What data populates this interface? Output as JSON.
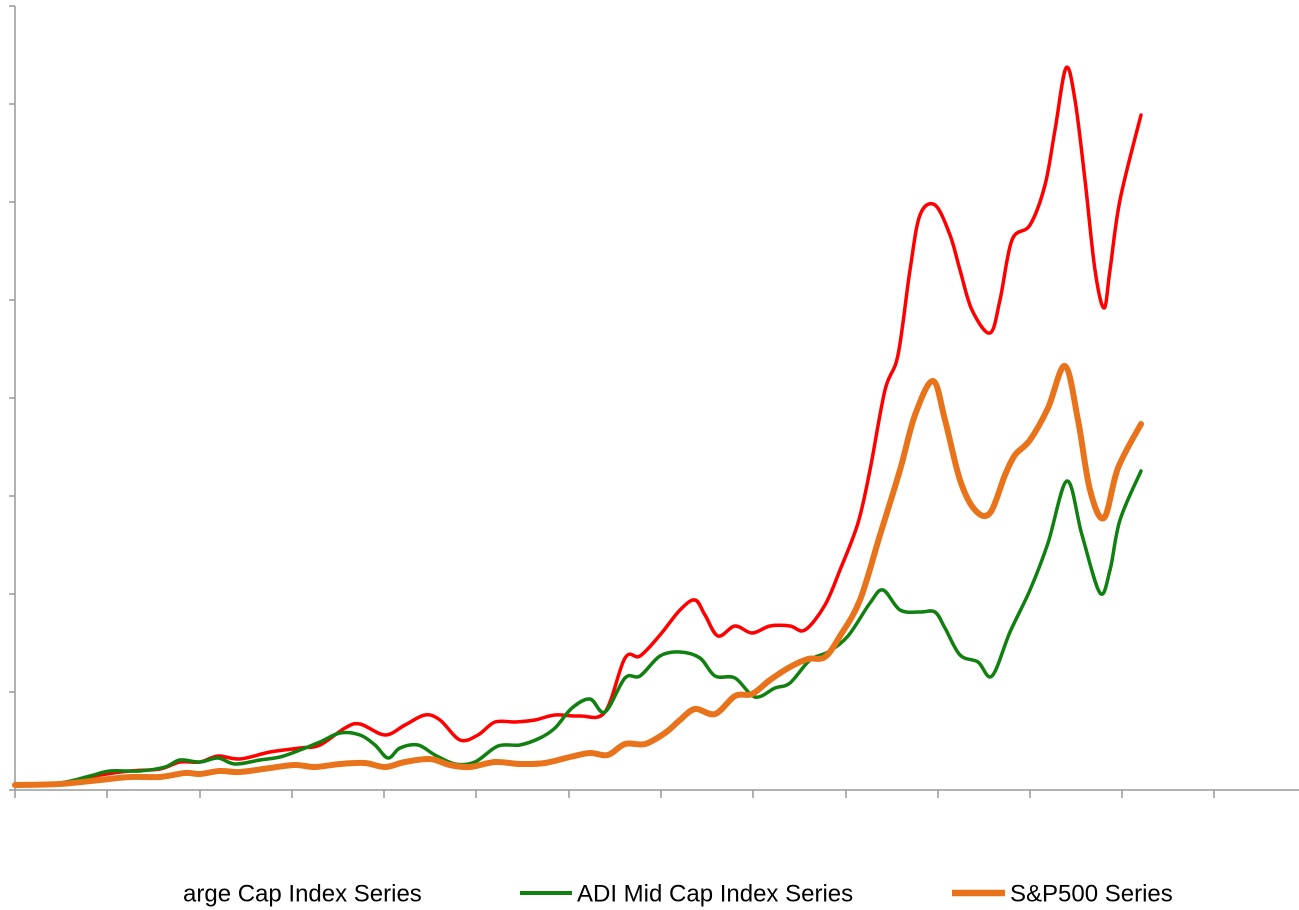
{
  "chart_data": {
    "type": "line",
    "xlim": [
      0,
      1284
    ],
    "xticks": [
      0,
      92,
      185,
      277,
      369,
      461,
      554,
      646,
      738,
      831,
      923,
      1015,
      1107,
      1199
    ],
    "ylim": [
      0,
      784
    ],
    "yticks": [
      0,
      98,
      196,
      294,
      392,
      490,
      588,
      686,
      784
    ],
    "series": [
      {
        "name": "arge Cap Index Series",
        "color": "#ff0000",
        "x": [
          0,
          45,
          85,
          115,
          145,
          165,
          185,
          203,
          225,
          255,
          285,
          305,
          330,
          345,
          370,
          390,
          410,
          425,
          445,
          463,
          480,
          500,
          520,
          540,
          565,
          590,
          610,
          625,
          645,
          665,
          680,
          690,
          703,
          720,
          737,
          755,
          775,
          790,
          810,
          825,
          843,
          855,
          870,
          883,
          895,
          905,
          920,
          935,
          945,
          957,
          975,
          985,
          997,
          1015,
          1030,
          1040,
          1051,
          1060,
          1070,
          1080,
          1089,
          1095,
          1105,
          1126
        ],
        "values": [
          5,
          7,
          15,
          19,
          21,
          28,
          28,
          34,
          31,
          38,
          42,
          45,
          62,
          66,
          55,
          65,
          75,
          70,
          50,
          55,
          68,
          68,
          70,
          75,
          74,
          78,
          132,
          134,
          155,
          180,
          190,
          175,
          154,
          164,
          157,
          164,
          164,
          160,
          185,
          220,
          267,
          320,
          400,
          435,
          520,
          575,
          585,
          555,
          520,
          480,
          457,
          490,
          550,
          565,
          605,
          660,
          722,
          690,
          610,
          520,
          482,
          520,
          590,
          675
        ]
      },
      {
        "name": "ADI Mid Cap Index Series",
        "color": "#108010",
        "x": [
          0,
          45,
          75,
          95,
          125,
          150,
          165,
          185,
          203,
          220,
          245,
          265,
          285,
          305,
          325,
          345,
          360,
          373,
          385,
          403,
          420,
          440,
          460,
          483,
          505,
          525,
          540,
          557,
          575,
          590,
          610,
          625,
          645,
          665,
          685,
          700,
          720,
          740,
          760,
          775,
          795,
          813,
          833,
          855,
          868,
          885,
          905,
          920,
          930,
          945,
          963,
          977,
          995,
          1015,
          1033,
          1052,
          1067,
          1085,
          1095,
          1105,
          1126
        ],
        "values": [
          5,
          7,
          14,
          19,
          19,
          23,
          30,
          28,
          32,
          26,
          30,
          33,
          40,
          48,
          57,
          55,
          45,
          32,
          42,
          45,
          35,
          26,
          28,
          44,
          45,
          52,
          62,
          82,
          91,
          78,
          112,
          114,
          134,
          138,
          132,
          114,
          112,
          93,
          102,
          107,
          130,
          138,
          154,
          187,
          200,
          180,
          178,
          178,
          162,
          135,
          128,
          114,
          158,
          200,
          247,
          309,
          255,
          197,
          220,
          270,
          319
        ]
      },
      {
        "name": "S&P500 Series",
        "color": "#e8731a",
        "x": [
          0,
          45,
          85,
          115,
          145,
          170,
          185,
          205,
          225,
          255,
          280,
          300,
          325,
          350,
          370,
          390,
          415,
          435,
          455,
          480,
          505,
          530,
          555,
          575,
          593,
          610,
          630,
          650,
          665,
          680,
          700,
          720,
          737,
          755,
          775,
          793,
          810,
          825,
          845,
          865,
          885,
          900,
          918,
          930,
          945,
          960,
          975,
          990,
          1000,
          1015,
          1033,
          1050,
          1063,
          1075,
          1089,
          1103,
          1126
        ],
        "values": [
          5,
          6,
          10,
          13,
          13,
          17,
          16,
          19,
          18,
          22,
          25,
          23,
          26,
          27,
          23,
          28,
          31,
          25,
          23,
          28,
          26,
          27,
          33,
          37,
          35,
          46,
          46,
          57,
          70,
          81,
          76,
          94,
          96,
          110,
          123,
          131,
          133,
          154,
          190,
          255,
          320,
          375,
          409,
          370,
          310,
          280,
          277,
          315,
          335,
          350,
          382,
          424,
          370,
          300,
          272,
          322,
          366
        ]
      }
    ]
  }
}
